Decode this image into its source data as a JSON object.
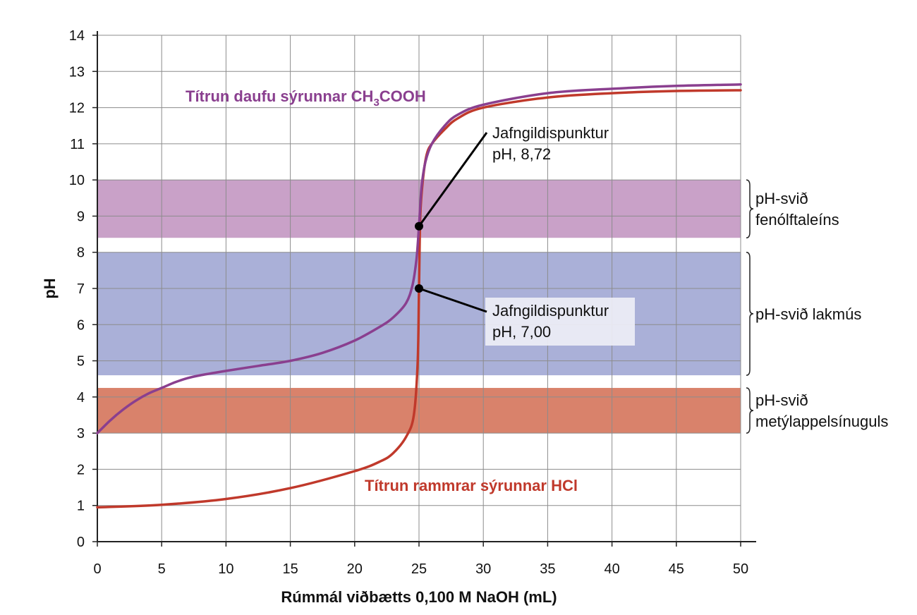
{
  "chart_data": {
    "type": "line",
    "xlabel": "Rúmmál viðbætts 0,100 M NaOH (mL)",
    "ylabel": "pH",
    "xlim": [
      0,
      50
    ],
    "ylim": [
      0,
      14
    ],
    "xticks": [
      "0",
      "5",
      "10",
      "15",
      "20",
      "25",
      "30",
      "35",
      "40",
      "45",
      "50"
    ],
    "yticks": [
      "0",
      "1",
      "2",
      "3",
      "4",
      "5",
      "6",
      "7",
      "8",
      "9",
      "10",
      "11",
      "12",
      "13",
      "14"
    ],
    "grid": true,
    "series": [
      {
        "name": "Títrun daufu sýrunnar CH3COOH",
        "label_main": "Títrun daufu sýrunnar CH",
        "label_sub": "3",
        "label_tail": "COOH",
        "color": "#8a3f8f",
        "points": [
          [
            0,
            3.0
          ],
          [
            1,
            3.35
          ],
          [
            2,
            3.65
          ],
          [
            3,
            3.9
          ],
          [
            4,
            4.1
          ],
          [
            5,
            4.25
          ],
          [
            6,
            4.4
          ],
          [
            7,
            4.52
          ],
          [
            8,
            4.6
          ],
          [
            10,
            4.72
          ],
          [
            12.5,
            4.86
          ],
          [
            15,
            5.0
          ],
          [
            17.5,
            5.22
          ],
          [
            20,
            5.56
          ],
          [
            22,
            5.95
          ],
          [
            23,
            6.2
          ],
          [
            24,
            6.6
          ],
          [
            24.5,
            7.1
          ],
          [
            24.8,
            7.8
          ],
          [
            25,
            8.72
          ],
          [
            25.2,
            9.8
          ],
          [
            25.5,
            10.5
          ],
          [
            26,
            11.0
          ],
          [
            27,
            11.5
          ],
          [
            28,
            11.8
          ],
          [
            30,
            12.08
          ],
          [
            35,
            12.4
          ],
          [
            40,
            12.52
          ],
          [
            45,
            12.6
          ],
          [
            50,
            12.64
          ]
        ]
      },
      {
        "name": "Títrun rammrar sýrunnar HCl",
        "label_main": "Títrun rammrar sýrunnar HCl",
        "color": "#c0392b",
        "points": [
          [
            0,
            0.95
          ],
          [
            5,
            1.02
          ],
          [
            10,
            1.18
          ],
          [
            15,
            1.48
          ],
          [
            20,
            1.95
          ],
          [
            22,
            2.22
          ],
          [
            23,
            2.45
          ],
          [
            24,
            2.9
          ],
          [
            24.6,
            3.5
          ],
          [
            24.9,
            5.0
          ],
          [
            25,
            7.0
          ],
          [
            25.1,
            9.0
          ],
          [
            25.3,
            10.0
          ],
          [
            25.6,
            10.7
          ],
          [
            26,
            11.0
          ],
          [
            27,
            11.4
          ],
          [
            28,
            11.7
          ],
          [
            30,
            12.0
          ],
          [
            35,
            12.28
          ],
          [
            40,
            12.4
          ],
          [
            45,
            12.46
          ],
          [
            50,
            12.48
          ]
        ]
      }
    ],
    "bands": [
      {
        "name": "pH-svið fenólftaleíns",
        "lines": [
          "pH-svið",
          "fenólftaleíns"
        ],
        "ymin": 8.4,
        "ymax": 10.0,
        "color": "#c9a1c8"
      },
      {
        "name": "pH-svið lakmús",
        "lines": [
          "pH-svið lakmús"
        ],
        "ymin": 4.6,
        "ymax": 8.0,
        "color": "#aab0d8"
      },
      {
        "name": "pH-svið metýlappelsínuguls",
        "lines": [
          "pH-svið",
          "metýlappelsínuguls"
        ],
        "ymin": 3.0,
        "ymax": 4.25,
        "color": "#d9826b"
      }
    ],
    "annotations": [
      {
        "lines": [
          "Jafngildispunktur",
          "pH, 8,72"
        ],
        "x": 25,
        "y": 8.72
      },
      {
        "lines": [
          "Jafngildispunktur",
          "pH, 7,00"
        ],
        "x": 25,
        "y": 7.0
      }
    ]
  }
}
